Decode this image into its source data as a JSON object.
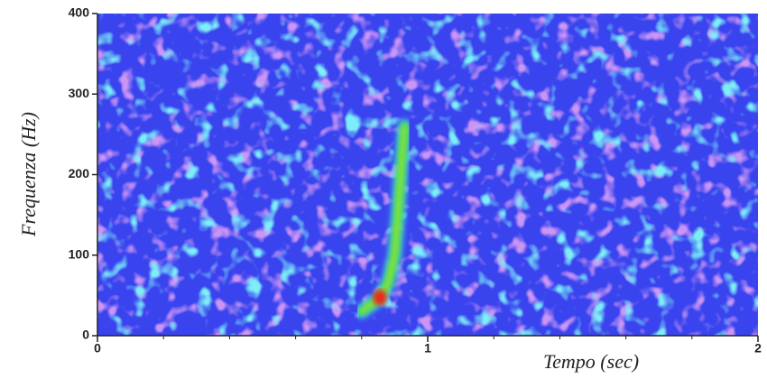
{
  "chart_data": {
    "type": "spectrogram",
    "x_label": "Tempo (sec)",
    "y_label": "Frequenza (Hz)",
    "xlim": [
      0,
      2
    ],
    "ylim": [
      0,
      400
    ],
    "xticks": [
      0,
      1,
      2
    ],
    "xminorticks": [
      0.2,
      0.4,
      0.6,
      0.8,
      1.2,
      1.4,
      1.6,
      1.8
    ],
    "yticks": [
      0,
      100,
      200,
      300,
      400
    ],
    "series": [
      {
        "color": "#46e03c",
        "x": [
          0.8,
          0.85,
          0.88,
          0.9,
          0.91,
          0.92,
          0.93
        ],
        "values": [
          30,
          45,
          65,
          100,
          150,
          210,
          260
        ]
      }
    ]
  }
}
